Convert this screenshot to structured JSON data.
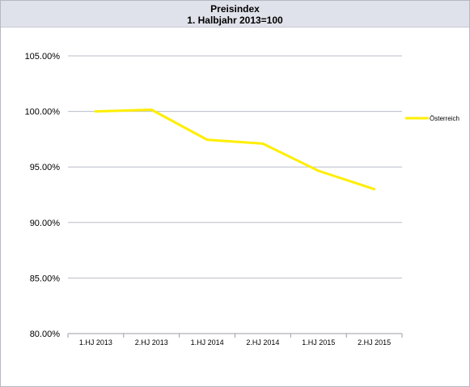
{
  "chart_data": {
    "type": "line",
    "title": "Preisindex",
    "subtitle": "1. Halbjahr 2013=100",
    "xlabel": "",
    "ylabel": "",
    "categories": [
      "1.HJ 2013",
      "2.HJ 2013",
      "1.HJ 2014",
      "2.HJ 2014",
      "1.HJ 2015",
      "2.HJ 2015"
    ],
    "series": [
      {
        "name": "Österreich",
        "color": "#ffee00",
        "values": [
          100.0,
          100.15,
          97.45,
          97.1,
          94.65,
          93.0
        ]
      }
    ],
    "ylim": [
      80,
      105
    ],
    "yticks": [
      "80.00%",
      "85.00%",
      "90.00%",
      "95.00%",
      "100.00%",
      "105.00%"
    ],
    "grid": true,
    "legend_position": "right"
  }
}
